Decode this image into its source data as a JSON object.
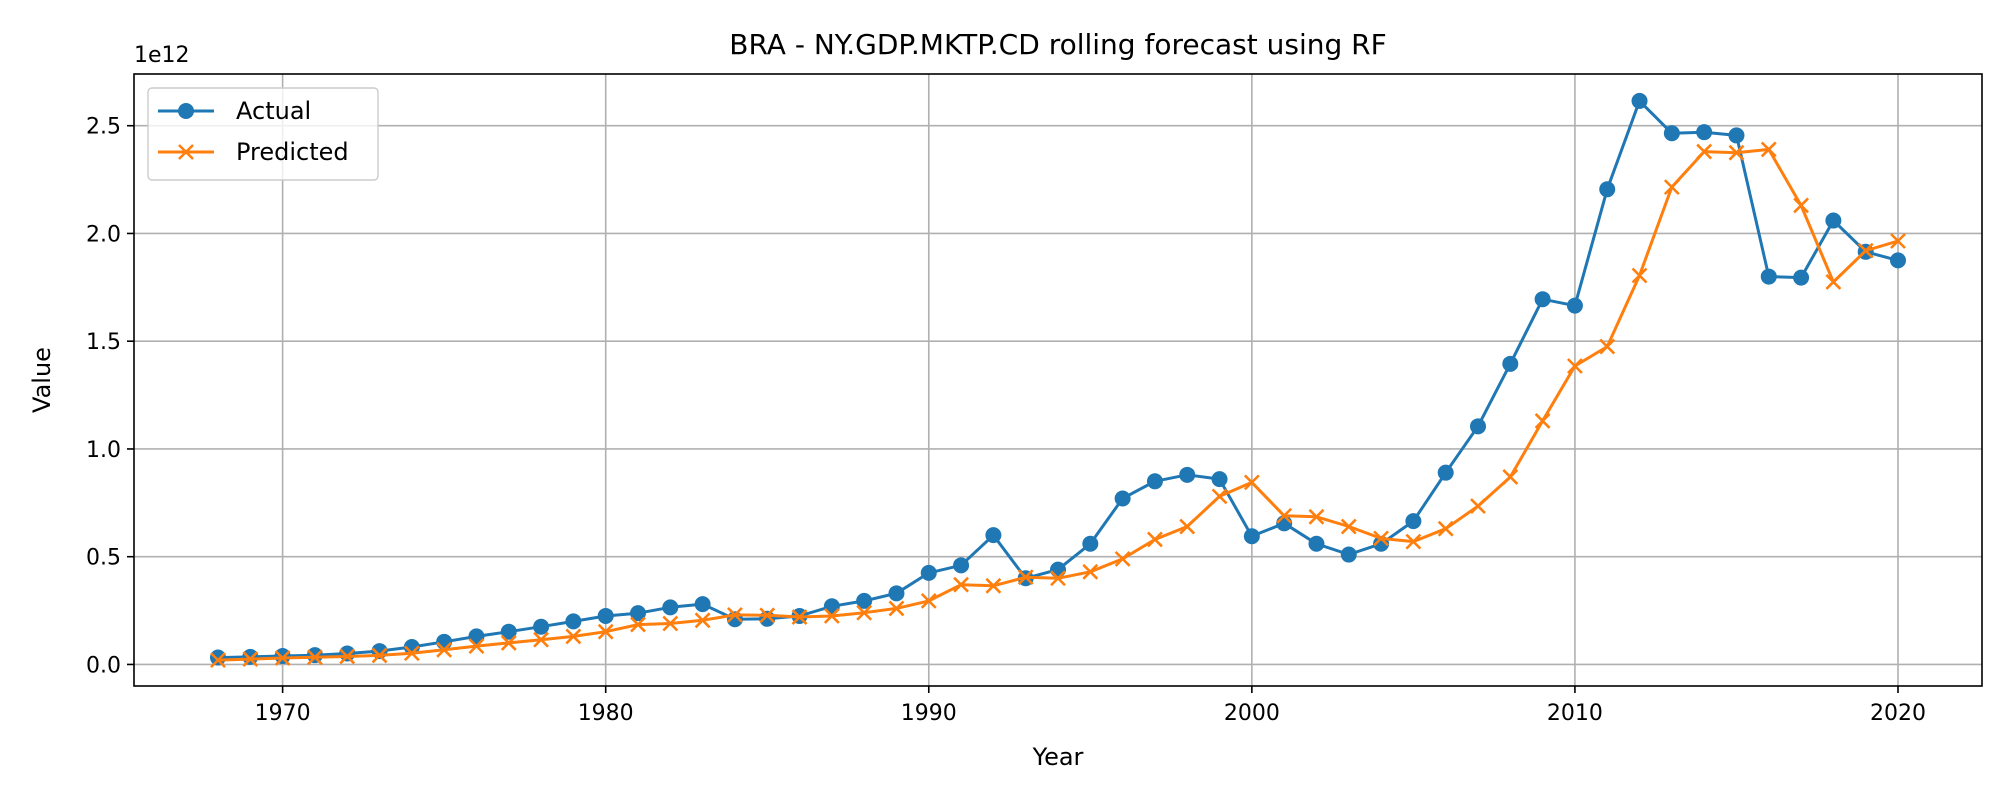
{
  "chart_data": {
    "type": "line",
    "title": "BRA - NY.GDP.MKTP.CD rolling forecast using RF",
    "xlabel": "Year",
    "ylabel": "Value",
    "y_offset_label": "1e12",
    "xlim": [
      1965.4,
      2022.6
    ],
    "ylim": [
      -0.1,
      2.74
    ],
    "x_ticks": [
      1970,
      1980,
      1990,
      2000,
      2010,
      2020
    ],
    "y_ticks": [
      0.0,
      0.5,
      1.0,
      1.5,
      2.0,
      2.5
    ],
    "y_tick_labels": [
      "0.0",
      "0.5",
      "1.0",
      "1.5",
      "2.0",
      "2.5"
    ],
    "grid": true,
    "legend_position": "top-left",
    "x": [
      1968,
      1969,
      1970,
      1971,
      1972,
      1973,
      1974,
      1975,
      1976,
      1977,
      1978,
      1979,
      1980,
      1981,
      1982,
      1983,
      1984,
      1985,
      1986,
      1987,
      1988,
      1989,
      1990,
      1991,
      1992,
      1993,
      1994,
      1995,
      1996,
      1997,
      1998,
      1999,
      2000,
      2001,
      2002,
      2003,
      2004,
      2005,
      2006,
      2007,
      2008,
      2009,
      2010,
      2011,
      2012,
      2013,
      2014,
      2015,
      2016,
      2017,
      2018,
      2019,
      2020
    ],
    "series": [
      {
        "name": "Actual",
        "color": "#1f77b4",
        "marker": "circle",
        "values": [
          0.032,
          0.035,
          0.039,
          0.043,
          0.051,
          0.062,
          0.081,
          0.105,
          0.13,
          0.152,
          0.175,
          0.2,
          0.225,
          0.238,
          0.265,
          0.28,
          0.21,
          0.212,
          0.225,
          0.27,
          0.295,
          0.33,
          0.425,
          0.46,
          0.6,
          0.4,
          0.44,
          0.56,
          0.77,
          0.85,
          0.88,
          0.86,
          0.595,
          0.655,
          0.56,
          0.51,
          0.56,
          0.665,
          0.89,
          1.105,
          1.395,
          1.695,
          1.665,
          2.205,
          2.615,
          2.465,
          2.47,
          2.455,
          1.8,
          1.795,
          2.06,
          1.915,
          1.875
        ]
      },
      {
        "name": "Predicted",
        "color": "#ff7f0e",
        "marker": "x",
        "values": [
          0.02,
          0.025,
          0.03,
          0.033,
          0.037,
          0.042,
          0.052,
          0.068,
          0.085,
          0.1,
          0.115,
          0.13,
          0.152,
          0.185,
          0.19,
          0.205,
          0.23,
          0.228,
          0.22,
          0.225,
          0.24,
          0.26,
          0.295,
          0.37,
          0.365,
          0.405,
          0.4,
          0.43,
          0.49,
          0.58,
          0.64,
          0.78,
          0.845,
          0.69,
          0.685,
          0.64,
          0.585,
          0.57,
          0.63,
          0.735,
          0.87,
          1.13,
          1.385,
          1.475,
          1.805,
          2.215,
          2.38,
          2.375,
          2.39,
          2.13,
          1.775,
          1.92,
          1.965
        ]
      }
    ]
  }
}
